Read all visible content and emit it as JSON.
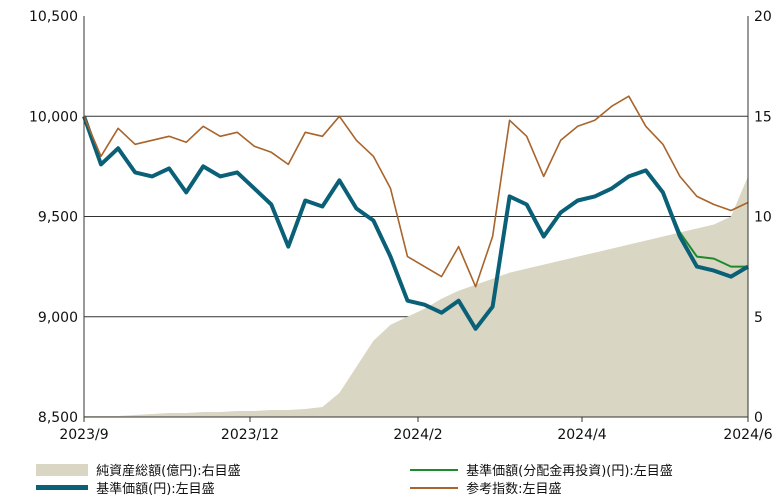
{
  "chart_data": {
    "type": "line",
    "x_labels": [
      "2023/9",
      "2023/12",
      "2024/2",
      "2024/4",
      "2024/6"
    ],
    "left_axis": {
      "ylim": [
        8500,
        10500
      ],
      "ticks": [
        "8,500",
        "9,000",
        "9,500",
        "10,000",
        "10,500"
      ]
    },
    "right_axis": {
      "ylim": [
        0,
        20
      ],
      "ticks": [
        "0",
        "5",
        "10",
        "15",
        "20"
      ]
    },
    "grid": "horizontal",
    "n_points": 40,
    "series": [
      {
        "name": "純資産総額(億円):右目盛",
        "axis": "right",
        "kind": "area",
        "color": "#d9d6c4",
        "values": [
          0.05,
          0.05,
          0.05,
          0.1,
          0.15,
          0.2,
          0.2,
          0.25,
          0.25,
          0.3,
          0.3,
          0.35,
          0.35,
          0.4,
          0.5,
          1.2,
          2.5,
          3.8,
          4.6,
          5.0,
          5.4,
          5.9,
          6.3,
          6.6,
          6.9,
          7.2,
          7.4,
          7.6,
          7.8,
          8.0,
          8.2,
          8.4,
          8.6,
          8.8,
          9.0,
          9.2,
          9.4,
          9.6,
          10.0,
          12.0
        ]
      },
      {
        "name": "基準価額(分配金再投資)(円):左目盛",
        "axis": "left",
        "kind": "line",
        "color": "#1e8a2e",
        "values": [
          10000,
          9760,
          9840,
          9720,
          9700,
          9740,
          9620,
          9750,
          9700,
          9720,
          9640,
          9560,
          9350,
          9580,
          9550,
          9680,
          9540,
          9480,
          9300,
          9080,
          9060,
          9020,
          9080,
          8940,
          9050,
          9600,
          9560,
          9400,
          9520,
          9580,
          9600,
          9640,
          9700,
          9730,
          9620,
          9420,
          9300,
          9290,
          9250,
          9250
        ]
      },
      {
        "name": "基準価額(円):左目盛",
        "axis": "left",
        "kind": "line",
        "color": "#0a6076",
        "values": [
          10000,
          9760,
          9840,
          9720,
          9700,
          9740,
          9620,
          9750,
          9700,
          9720,
          9640,
          9560,
          9350,
          9580,
          9550,
          9680,
          9540,
          9480,
          9300,
          9080,
          9060,
          9020,
          9080,
          8940,
          9050,
          9600,
          9560,
          9400,
          9520,
          9580,
          9600,
          9640,
          9700,
          9730,
          9620,
          9400,
          9250,
          9230,
          9200,
          9250
        ]
      },
      {
        "name": "参考指数:左目盛",
        "axis": "left",
        "kind": "line",
        "color": "#a8642b",
        "values": [
          10000,
          9800,
          9940,
          9860,
          9880,
          9900,
          9870,
          9950,
          9900,
          9920,
          9850,
          9820,
          9760,
          9920,
          9900,
          10000,
          9880,
          9800,
          9640,
          9300,
          9250,
          9200,
          9350,
          9150,
          9400,
          9980,
          9900,
          9700,
          9880,
          9950,
          9980,
          10050,
          10100,
          9950,
          9860,
          9700,
          9600,
          9560,
          9530,
          9570
        ]
      }
    ]
  },
  "legend": [
    {
      "label": "純資産総額(億円):右目盛",
      "style": "area",
      "color": "#d9d6c4"
    },
    {
      "label": "基準価額(分配金再投資)(円):左目盛",
      "style": "thin",
      "color": "#1e8a2e"
    },
    {
      "label": "基準価額(円):左目盛",
      "style": "thick",
      "color": "#0a6076"
    },
    {
      "label": "参考指数:左目盛",
      "style": "thin",
      "color": "#a8642b"
    }
  ]
}
